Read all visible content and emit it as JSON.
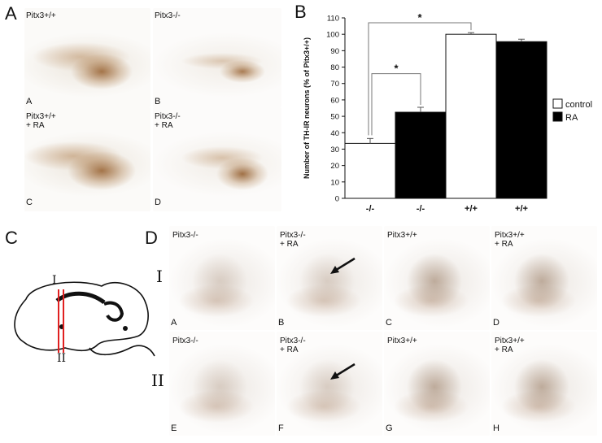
{
  "panelA": {
    "letter": "A",
    "cells": [
      {
        "label": "Pitx3+/+",
        "corner": "A"
      },
      {
        "label": "Pitx3-/-",
        "corner": "B"
      },
      {
        "label": "Pitx3+/+\n+ RA",
        "corner": "C"
      },
      {
        "label": "Pitx3-/-\n+ RA",
        "corner": "D"
      }
    ]
  },
  "panelB": {
    "letter": "B"
  },
  "panelC": {
    "letter": "C",
    "line_labels": [
      "I",
      "II"
    ]
  },
  "panelD": {
    "letter": "D",
    "row_labels": [
      "I",
      "II"
    ],
    "rows": [
      [
        {
          "label": "Pitx3-/-",
          "corner": "A"
        },
        {
          "label": "Pitx3-/-\n+ RA",
          "corner": "B"
        },
        {
          "label": "Pitx3+/+",
          "corner": "C"
        },
        {
          "label": "Pitx3+/+\n+ RA",
          "corner": "D"
        }
      ],
      [
        {
          "label": "Pitx3-/-",
          "corner": "E"
        },
        {
          "label": "Pitx3-/-\n+ RA",
          "corner": "F"
        },
        {
          "label": "Pitx3+/+",
          "corner": "G"
        },
        {
          "label": "Pitx3+/+\n+ RA",
          "corner": "H"
        }
      ]
    ]
  },
  "chart_data": {
    "type": "bar",
    "ylabel": "Number of TH-IR neurons (% of Pitx3+/+)",
    "categories": [
      "-/-",
      "-/-",
      "+/+",
      "+/+"
    ],
    "ylim": [
      0,
      110
    ],
    "yticks": [
      0,
      10,
      20,
      30,
      40,
      50,
      60,
      70,
      80,
      90,
      100,
      110
    ],
    "series": [
      {
        "name": "control",
        "color": "#ffffff",
        "bars": [
          {
            "category_index": 0,
            "value": 33.5,
            "error": 3
          },
          {
            "category_index": 2,
            "value": 100,
            "error": 1
          }
        ]
      },
      {
        "name": "RA",
        "color": "#000000",
        "bars": [
          {
            "category_index": 1,
            "value": 52.5,
            "error": 3
          },
          {
            "category_index": 3,
            "value": 95.5,
            "error": 1.5
          }
        ]
      }
    ],
    "significance": [
      {
        "from_index": 0,
        "to_index": 1,
        "label": "*"
      },
      {
        "from_index": 0,
        "to_index": 2,
        "label": "*"
      }
    ],
    "legend_position": "right"
  }
}
